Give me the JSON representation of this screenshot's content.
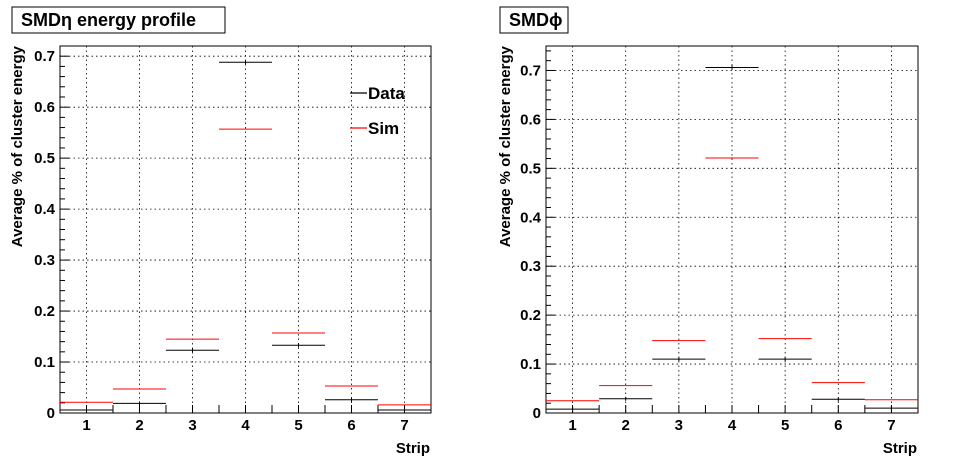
{
  "chart_data": [
    {
      "type": "bar",
      "title": "SMDη energy profile",
      "xlabel": "Strip",
      "ylabel": "Average % of cluster energy",
      "categories": [
        "1",
        "2",
        "3",
        "4",
        "5",
        "6",
        "7"
      ],
      "xlim": [
        0.5,
        7.5
      ],
      "ylim": [
        0,
        0.72
      ],
      "yticks": [
        "0",
        "0.1",
        "0.2",
        "0.3",
        "0.4",
        "0.5",
        "0.6",
        "0.7"
      ],
      "grid": true,
      "legend": "top-right",
      "series": [
        {
          "name": "Data",
          "color": "#000000",
          "values": [
            0.006,
            0.019,
            0.123,
            0.688,
            0.133,
            0.026,
            0.006
          ]
        },
        {
          "name": "Sim",
          "color": "#ff0000",
          "values": [
            0.021,
            0.047,
            0.145,
            0.557,
            0.157,
            0.053,
            0.016
          ]
        }
      ]
    },
    {
      "type": "bar",
      "title": "SMDϕ",
      "xlabel": "Strip",
      "ylabel": "Average % of cluster energy",
      "categories": [
        "1",
        "2",
        "3",
        "4",
        "5",
        "6",
        "7"
      ],
      "xlim": [
        0.5,
        7.5
      ],
      "ylim": [
        0,
        0.75
      ],
      "yticks": [
        "0",
        "0.1",
        "0.2",
        "0.3",
        "0.4",
        "0.5",
        "0.6",
        "0.7"
      ],
      "grid": true,
      "series": [
        {
          "name": "Data",
          "color": "#000000",
          "values": [
            0.008,
            0.029,
            0.11,
            0.706,
            0.11,
            0.028,
            0.01
          ]
        },
        {
          "name": "Sim",
          "color": "#ff0000",
          "values": [
            0.025,
            0.056,
            0.148,
            0.521,
            0.152,
            0.062,
            0.027
          ]
        }
      ]
    }
  ]
}
